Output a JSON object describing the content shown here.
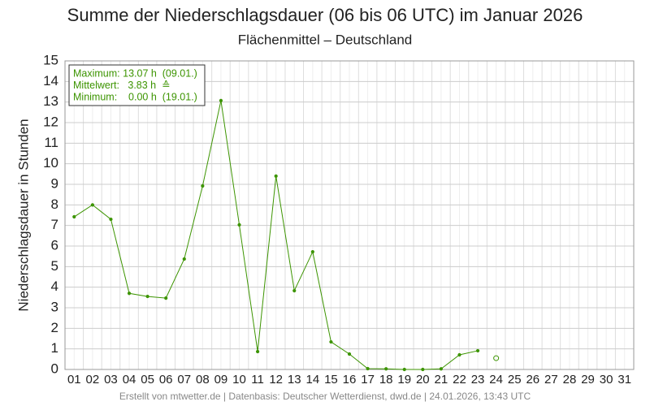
{
  "chart_data": {
    "type": "line",
    "title": "Summe der Niederschlagsdauer (06 bis 06 UTC) im Januar 2026",
    "subtitle": "Flächenmittel – Deutschland",
    "y_label": "Niederschlagsdauer in Stunden",
    "categories": [
      "01",
      "02",
      "03",
      "04",
      "05",
      "06",
      "07",
      "08",
      "09",
      "10",
      "11",
      "12",
      "13",
      "14",
      "15",
      "16",
      "17",
      "18",
      "19",
      "20",
      "21",
      "22",
      "23",
      "24",
      "25",
      "26",
      "27",
      "28",
      "29",
      "30",
      "31"
    ],
    "series": [
      {
        "color": "#3c9400",
        "marker": "dot",
        "values": [
          7.42,
          8.0,
          7.3,
          3.7,
          3.55,
          3.47,
          5.37,
          8.92,
          13.07,
          7.03,
          0.87,
          9.4,
          3.83,
          5.72,
          1.34,
          0.75,
          0.04,
          0.03,
          0.0,
          0.0,
          0.03,
          0.71,
          0.91,
          null,
          null,
          null,
          null,
          null,
          null,
          null,
          null
        ]
      },
      {
        "color": "#3c9400",
        "marker": "open",
        "values": [
          null,
          null,
          null,
          null,
          null,
          null,
          null,
          null,
          null,
          null,
          null,
          null,
          null,
          null,
          null,
          null,
          null,
          null,
          null,
          null,
          null,
          null,
          null,
          0.55,
          null,
          null,
          null,
          null,
          null,
          null,
          null
        ]
      }
    ],
    "ylim": [
      0,
      15
    ],
    "yticks": [
      0,
      1,
      2,
      3,
      4,
      5,
      6,
      7,
      8,
      9,
      10,
      11,
      12,
      13,
      14,
      15
    ],
    "grid": true,
    "annotations": [
      "Maximum: 13.07 h  (09.01.)",
      "Mittelwert:   3.83 h  ≙",
      "Minimum:    0.00 h  (19.01.)"
    ],
    "footer": "Erstellt von mtwetter.de | Datenbasis: Deutscher Wetterdienst, dwd.de | 24.01.2026, 13:43 UTC"
  }
}
